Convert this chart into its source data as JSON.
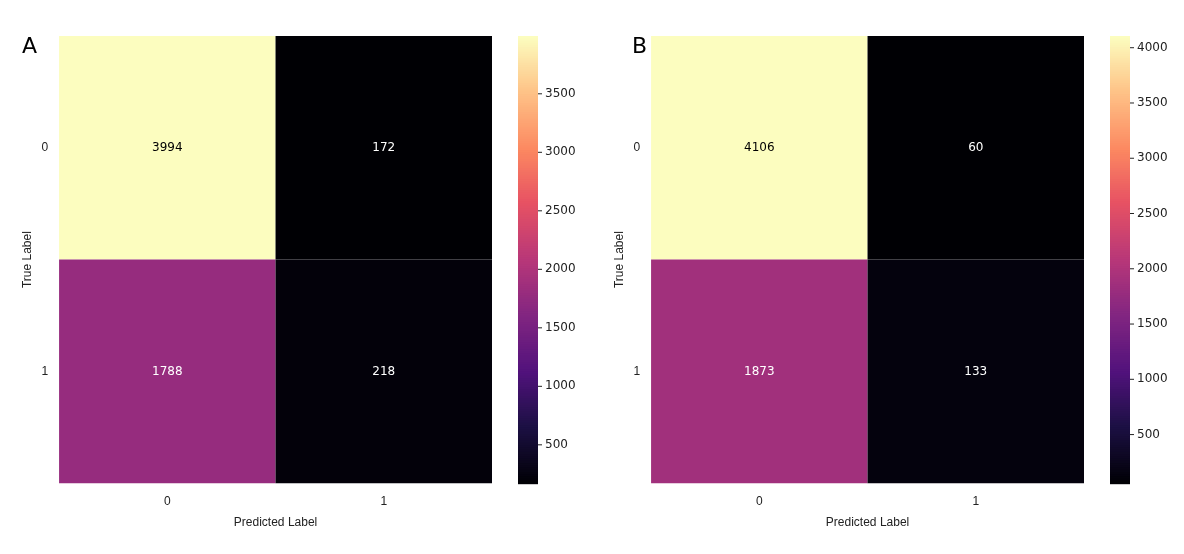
{
  "chart_data": [
    {
      "type": "heatmap",
      "annotations": [
        "A"
      ],
      "xlabel": "Predicted Label",
      "ylabel": "True Label",
      "categories": [
        "0",
        "1"
      ],
      "y_categories": [
        "0",
        "1"
      ],
      "cells": [
        [
          3994,
          172
        ],
        [
          1788,
          218
        ]
      ],
      "clim": [
        172,
        3994
      ],
      "cticks": [
        500,
        1000,
        1500,
        2000,
        2500,
        3000,
        3500
      ],
      "data_labels": true
    },
    {
      "type": "heatmap",
      "annotations": [
        "B"
      ],
      "xlabel": "Predicted Label",
      "ylabel": "True Label",
      "categories": [
        "0",
        "1"
      ],
      "y_categories": [
        "0",
        "1"
      ],
      "cells": [
        [
          4106,
          60
        ],
        [
          1873,
          133
        ]
      ],
      "clim": [
        60,
        4106
      ],
      "cticks": [
        500,
        1000,
        1500,
        2000,
        2500,
        3000,
        3500,
        4000
      ],
      "data_labels": true
    }
  ]
}
